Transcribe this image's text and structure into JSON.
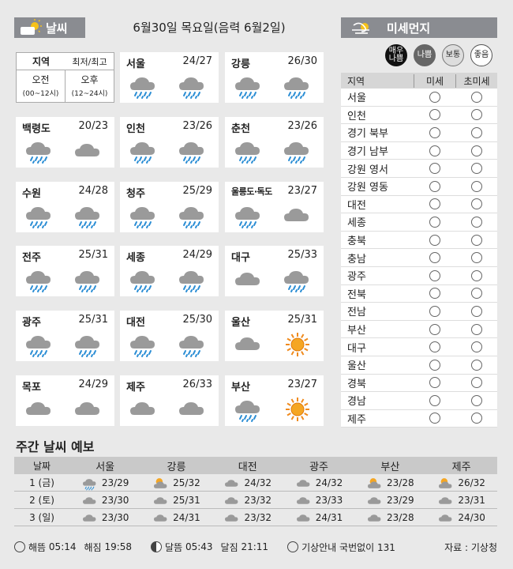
{
  "header": {
    "weather_title": "날씨",
    "date_line": "6월30일 목요일(음력 6월2일)",
    "dust_title": "미세먼지"
  },
  "legend": {
    "region_label": "지역",
    "minmax_label": "최저/최고",
    "am_label": "오전",
    "am_range": "(00~12시)",
    "pm_label": "오후",
    "pm_range": "(12~24시)"
  },
  "cities": [
    {
      "name": "서울",
      "temp": "24/27",
      "am": "rain",
      "pm": "rain"
    },
    {
      "name": "강릉",
      "temp": "26/30",
      "am": "rain",
      "pm": "rain"
    },
    {
      "name": "백령도",
      "temp": "20/23",
      "am": "rain",
      "pm": "cloud"
    },
    {
      "name": "인천",
      "temp": "23/26",
      "am": "rain",
      "pm": "rain"
    },
    {
      "name": "춘천",
      "temp": "23/26",
      "am": "rain",
      "pm": "rain"
    },
    {
      "name": "수원",
      "temp": "24/28",
      "am": "rain",
      "pm": "rain"
    },
    {
      "name": "청주",
      "temp": "25/29",
      "am": "rain",
      "pm": "rain"
    },
    {
      "name": "울릉도·독도",
      "temp": "23/27",
      "am": "rain",
      "pm": "cloud"
    },
    {
      "name": "전주",
      "temp": "25/31",
      "am": "rain",
      "pm": "rain"
    },
    {
      "name": "세종",
      "temp": "24/29",
      "am": "rain",
      "pm": "rain"
    },
    {
      "name": "대구",
      "temp": "25/33",
      "am": "cloud",
      "pm": "rain"
    },
    {
      "name": "광주",
      "temp": "25/31",
      "am": "rain",
      "pm": "rain"
    },
    {
      "name": "대전",
      "temp": "25/30",
      "am": "rain",
      "pm": "rain"
    },
    {
      "name": "울산",
      "temp": "25/31",
      "am": "cloud",
      "pm": "sun"
    },
    {
      "name": "목포",
      "temp": "24/29",
      "am": "cloud",
      "pm": "cloud"
    },
    {
      "name": "제주",
      "temp": "26/33",
      "am": "cloud",
      "pm": "cloud"
    },
    {
      "name": "부산",
      "temp": "23/27",
      "am": "rain",
      "pm": "sun"
    }
  ],
  "dust": {
    "legend": [
      "매우 나쁨",
      "나쁨",
      "보통",
      "좋음"
    ],
    "col_region": "지역",
    "col_pm10": "미세",
    "col_pm25": "초미세",
    "regions": [
      "서울",
      "인천",
      "경기 북부",
      "경기 남부",
      "강원 영서",
      "강원 영동",
      "대전",
      "세종",
      "충북",
      "충남",
      "광주",
      "전북",
      "전남",
      "부산",
      "대구",
      "울산",
      "경북",
      "경남",
      "제주"
    ]
  },
  "weekly": {
    "title": "주간 날씨 예보",
    "date_col": "날짜",
    "cities": [
      "서울",
      "강릉",
      "대전",
      "광주",
      "부산",
      "제주"
    ],
    "rows": [
      {
        "day": "1 (금)",
        "cells": [
          {
            "icon": "rain",
            "temp": "23/29"
          },
          {
            "icon": "suncloud",
            "temp": "25/32"
          },
          {
            "icon": "cloud",
            "temp": "24/32"
          },
          {
            "icon": "cloud",
            "temp": "24/32"
          },
          {
            "icon": "suncloud",
            "temp": "23/28"
          },
          {
            "icon": "suncloud",
            "temp": "26/32"
          }
        ]
      },
      {
        "day": "2 (토)",
        "cells": [
          {
            "icon": "cloud",
            "temp": "23/30"
          },
          {
            "icon": "cloud",
            "temp": "25/31"
          },
          {
            "icon": "cloud",
            "temp": "23/32"
          },
          {
            "icon": "cloud",
            "temp": "23/33"
          },
          {
            "icon": "cloud",
            "temp": "23/29"
          },
          {
            "icon": "cloud",
            "temp": "23/31"
          }
        ]
      },
      {
        "day": "3 (일)",
        "cells": [
          {
            "icon": "cloud",
            "temp": "23/30"
          },
          {
            "icon": "cloud",
            "temp": "24/31"
          },
          {
            "icon": "cloud",
            "temp": "23/32"
          },
          {
            "icon": "cloud",
            "temp": "24/31"
          },
          {
            "icon": "cloud",
            "temp": "23/28"
          },
          {
            "icon": "cloud",
            "temp": "24/30"
          }
        ]
      }
    ]
  },
  "footer": {
    "sunrise_label": "해뜸",
    "sunrise": "05:14",
    "sunset_label": "해짐",
    "sunset": "19:58",
    "moonrise_label": "달뜸",
    "moonrise": "05:43",
    "moonset_label": "달짐",
    "moonset": "21:11",
    "info": "기상안내 국번없이 131",
    "source": "자료 : 기상청"
  }
}
